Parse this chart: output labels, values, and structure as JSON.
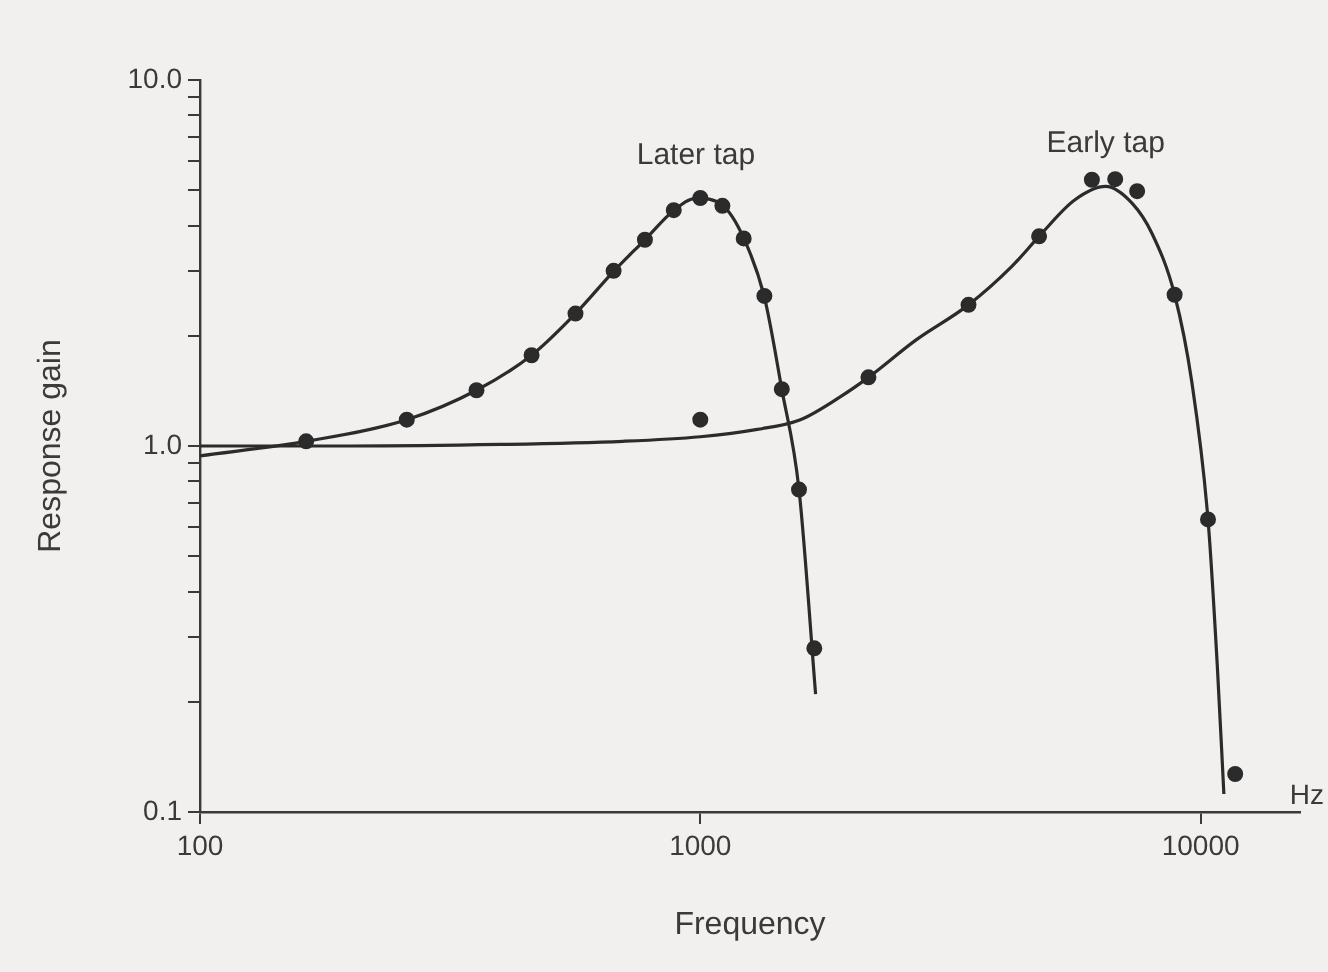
{
  "chart_data": {
    "type": "scatter",
    "xlabel": "Frequency",
    "ylabel": "Response gain",
    "log": "xy",
    "grid": false,
    "legend": false,
    "xlim": [
      100,
      15800
    ],
    "xticks": [
      100,
      1000,
      10000
    ],
    "ylim": [
      0.1,
      10
    ],
    "yticks": [
      {
        "value": 0.1,
        "label": "0.1"
      },
      {
        "value": 0.2,
        "label": null
      },
      {
        "value": 0.3,
        "label": null
      },
      {
        "value": 0.4,
        "label": null
      },
      {
        "value": 0.5,
        "label": null
      },
      {
        "value": 0.6,
        "label": null
      },
      {
        "value": 0.7,
        "label": null
      },
      {
        "value": 0.8,
        "label": null
      },
      {
        "value": 0.9,
        "label": null
      },
      {
        "value": 1,
        "label": "1.0"
      },
      {
        "value": 2,
        "label": null
      },
      {
        "value": 3,
        "label": null
      },
      {
        "value": 4,
        "label": null
      },
      {
        "value": 5,
        "label": null
      },
      {
        "value": 6,
        "label": null
      },
      {
        "value": 7,
        "label": null
      },
      {
        "value": 8,
        "label": null
      },
      {
        "value": 9,
        "label": null
      },
      {
        "value": 10,
        "label": "10.0"
      }
    ],
    "annotations": [
      "Hz"
    ],
    "series": [
      {
        "type": "line",
        "name": "Later tap",
        "color": "#2b2b2b",
        "marker": "none",
        "x": [
          100,
          163,
          259,
          357,
          460,
          563,
          671,
          775,
          885,
          980,
          1107,
          1221,
          1343,
          1455,
          1575,
          1700
        ],
        "values": [
          0.94,
          1.03,
          1.18,
          1.42,
          1.77,
          2.3,
          3.0,
          3.66,
          4.4,
          4.75,
          4.55,
          3.7,
          2.55,
          1.43,
          0.76,
          0.21
        ]
      },
      {
        "type": "line",
        "name": "Early tap",
        "color": "#2b2b2b",
        "marker": "none",
        "x": [
          100,
          200,
          400,
          700,
          1000,
          1300,
          1585,
          1900,
          2168,
          2700,
          3436,
          4200,
          4755,
          5600,
          6460,
          7300,
          8000,
          8872,
          9600,
          10346,
          10800,
          11130
        ],
        "values": [
          1.0,
          1.0,
          1.01,
          1.03,
          1.06,
          1.11,
          1.18,
          1.36,
          1.54,
          1.95,
          2.43,
          3.1,
          3.74,
          4.7,
          5.12,
          4.6,
          3.8,
          2.59,
          1.5,
          0.63,
          0.25,
          0.112
        ]
      },
      {
        "color": "#2b2b2b",
        "marker": "circle",
        "x": [
          163,
          259,
          357,
          460,
          563,
          671,
          775,
          885,
          1000,
          1107,
          1221,
          1343,
          1455,
          1575,
          1690
        ],
        "values": [
          1.03,
          1.18,
          1.42,
          1.77,
          2.3,
          3.01,
          3.66,
          4.41,
          4.76,
          4.53,
          3.69,
          2.57,
          1.43,
          0.76,
          0.28
        ]
      },
      {
        "color": "#2b2b2b",
        "marker": "circle",
        "x": [
          1000,
          2168,
          3436,
          4755,
          6063,
          6750,
          7467,
          8872,
          10346,
          11725
        ],
        "values": [
          1.18,
          1.54,
          2.43,
          3.74,
          5.34,
          5.36,
          4.97,
          2.59,
          0.63,
          0.127
        ]
      }
    ]
  }
}
